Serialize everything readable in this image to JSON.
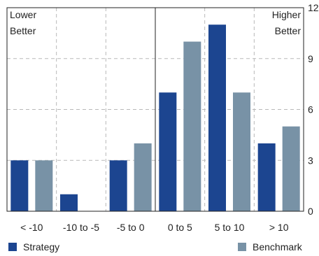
{
  "chart_data": {
    "type": "bar",
    "categories": [
      "< -10",
      "-10 to -5",
      "-5 to 0",
      "0 to 5",
      "5 to 10",
      "> 10"
    ],
    "series": [
      {
        "name": "Strategy",
        "values": [
          3,
          1,
          3,
          7,
          11,
          4
        ],
        "color": "#1c4590"
      },
      {
        "name": "Benchmark",
        "values": [
          3,
          0,
          4,
          10,
          7,
          5
        ],
        "color": "#7892a6"
      }
    ],
    "ylim": [
      0,
      12
    ],
    "yticks": [
      "0",
      "3",
      "6",
      "9",
      "12"
    ],
    "corner_labels": {
      "left": [
        "Lower",
        "Better"
      ],
      "right": [
        "Higher",
        "Better"
      ]
    },
    "grid": "dashed",
    "legend_position": "bottom"
  }
}
